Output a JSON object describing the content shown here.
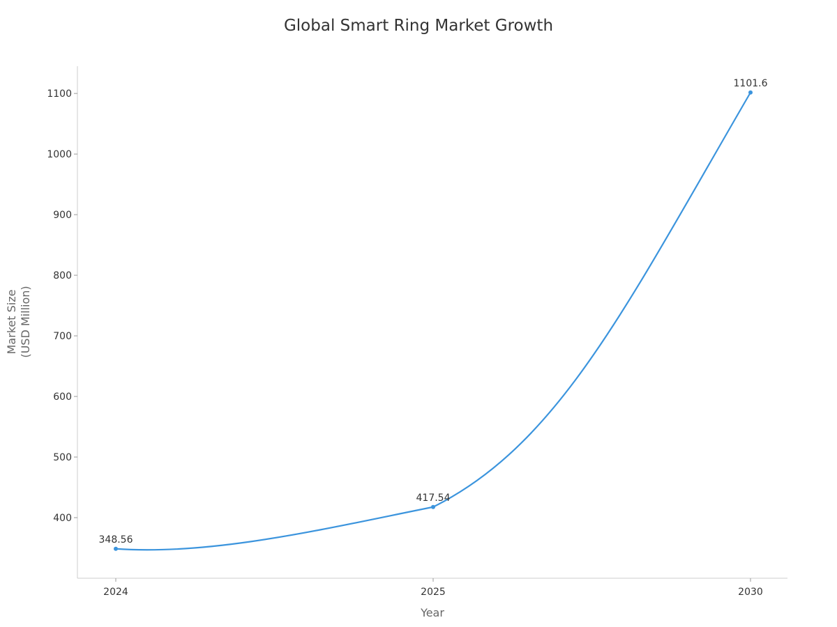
{
  "chart_data": {
    "type": "line",
    "title": "Global Smart Ring Market Growth",
    "xlabel": "Year",
    "ylabel_lines": [
      "Market Size",
      "(USD Million)"
    ],
    "categories": [
      "2024",
      "2025",
      "2030"
    ],
    "series": [
      {
        "values": [
          348.56,
          417.54,
          1101.6
        ],
        "data_labels": [
          "348.56",
          "417.54",
          "1101.6"
        ],
        "color": "#3b94dd"
      }
    ],
    "ylim": [
      300,
      1145
    ],
    "yticks": [
      400,
      500,
      600,
      700,
      800,
      900,
      1000,
      1100
    ],
    "grid": false,
    "smooth": true
  }
}
